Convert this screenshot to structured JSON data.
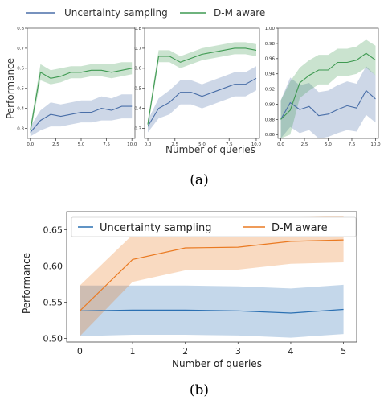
{
  "colors": {
    "uncertainty_a": "#4a6fa8",
    "dm_a": "#3f9a52",
    "uncertainty_b": "#2b70b2",
    "dm_b": "#ea7a22"
  },
  "figure_a": {
    "caption": "(a)",
    "legend": [
      "Uncertainty sampling",
      "D-M aware"
    ],
    "ylabel": "Performance",
    "xlabel": "Number of queries",
    "panels": [
      {
        "type": "line",
        "x": [
          0,
          1,
          2,
          3,
          4,
          5,
          6,
          7,
          8,
          9,
          10
        ],
        "xticks": [
          "0.0",
          "2.5",
          "5.0",
          "7.5",
          "10.0"
        ],
        "xtick_values": [
          0,
          2.5,
          5,
          7.5,
          10
        ],
        "yticks": [
          "0.3",
          "0.4",
          "0.5",
          "0.6",
          "0.7",
          "0.8"
        ],
        "ytick_values": [
          0.3,
          0.4,
          0.5,
          0.6,
          0.7,
          0.8
        ],
        "xlim": [
          -0.3,
          10.3
        ],
        "ylim": [
          0.25,
          0.8
        ],
        "series": [
          {
            "name": "Uncertainty sampling",
            "values": [
              0.28,
              0.34,
              0.37,
              0.36,
              0.37,
              0.38,
              0.38,
              0.4,
              0.39,
              0.41,
              0.41
            ],
            "lower": [
              0.26,
              0.29,
              0.31,
              0.31,
              0.32,
              0.33,
              0.33,
              0.34,
              0.34,
              0.35,
              0.35
            ],
            "upper": [
              0.31,
              0.39,
              0.43,
              0.42,
              0.43,
              0.44,
              0.44,
              0.46,
              0.45,
              0.47,
              0.47
            ]
          },
          {
            "name": "D-M aware",
            "values": [
              0.29,
              0.58,
              0.55,
              0.56,
              0.58,
              0.58,
              0.59,
              0.59,
              0.58,
              0.59,
              0.6
            ],
            "lower": [
              0.27,
              0.54,
              0.52,
              0.53,
              0.55,
              0.55,
              0.56,
              0.56,
              0.55,
              0.56,
              0.57
            ],
            "upper": [
              0.31,
              0.62,
              0.59,
              0.6,
              0.61,
              0.61,
              0.62,
              0.62,
              0.62,
              0.63,
              0.63
            ]
          }
        ]
      },
      {
        "type": "line",
        "x": [
          0,
          1,
          2,
          3,
          4,
          5,
          6,
          7,
          8,
          9,
          10
        ],
        "xticks": [
          "0.0",
          "2.5",
          "5.0",
          "7.5",
          "10.0"
        ],
        "xtick_values": [
          0,
          2.5,
          5,
          7.5,
          10
        ],
        "yticks": [
          "0.3",
          "0.4",
          "0.5",
          "0.6",
          "0.7",
          "0.8"
        ],
        "ytick_values": [
          0.3,
          0.4,
          0.5,
          0.6,
          0.7,
          0.8
        ],
        "xlim": [
          -0.3,
          10.3
        ],
        "ylim": [
          0.25,
          0.8
        ],
        "series": [
          {
            "name": "Uncertainty sampling",
            "values": [
              0.31,
              0.4,
              0.43,
              0.48,
              0.48,
              0.46,
              0.48,
              0.5,
              0.52,
              0.52,
              0.55
            ],
            "lower": [
              0.28,
              0.35,
              0.37,
              0.42,
              0.42,
              0.4,
              0.42,
              0.44,
              0.46,
              0.46,
              0.49
            ],
            "upper": [
              0.34,
              0.45,
              0.49,
              0.54,
              0.54,
              0.52,
              0.54,
              0.56,
              0.58,
              0.58,
              0.61
            ]
          },
          {
            "name": "D-M aware",
            "values": [
              0.32,
              0.66,
              0.66,
              0.63,
              0.65,
              0.67,
              0.68,
              0.69,
              0.7,
              0.7,
              0.69
            ],
            "lower": [
              0.3,
              0.63,
              0.63,
              0.6,
              0.62,
              0.64,
              0.65,
              0.66,
              0.67,
              0.67,
              0.66
            ],
            "upper": [
              0.34,
              0.69,
              0.69,
              0.66,
              0.68,
              0.7,
              0.71,
              0.72,
              0.73,
              0.73,
              0.72
            ]
          }
        ]
      },
      {
        "type": "line",
        "x": [
          0,
          1,
          2,
          3,
          4,
          5,
          6,
          7,
          8,
          9,
          10
        ],
        "xticks": [
          "0.0",
          "2.5",
          "5.0",
          "7.5",
          "10.0"
        ],
        "xtick_values": [
          0,
          2.5,
          5,
          7.5,
          10
        ],
        "yticks": [
          "0.86",
          "0.88",
          "0.90",
          "0.92",
          "0.94",
          "0.96",
          "0.98",
          "1.00"
        ],
        "ytick_values": [
          0.86,
          0.88,
          0.9,
          0.92,
          0.94,
          0.96,
          0.98,
          1.0
        ],
        "xlim": [
          -0.3,
          10.3
        ],
        "ylim": [
          0.855,
          1.0
        ],
        "series": [
          {
            "name": "Uncertainty sampling",
            "values": [
              0.88,
              0.902,
              0.893,
              0.897,
              0.885,
              0.887,
              0.893,
              0.898,
              0.895,
              0.918,
              0.907
            ],
            "lower": [
              0.855,
              0.87,
              0.862,
              0.866,
              0.855,
              0.857,
              0.862,
              0.866,
              0.864,
              0.886,
              0.876
            ],
            "upper": [
              0.905,
              0.935,
              0.925,
              0.928,
              0.916,
              0.918,
              0.925,
              0.93,
              0.927,
              0.95,
              0.938
            ]
          },
          {
            "name": "D-M aware",
            "values": [
              0.88,
              0.892,
              0.928,
              0.938,
              0.945,
              0.945,
              0.955,
              0.955,
              0.958,
              0.967,
              0.958
            ],
            "lower": [
              0.855,
              0.86,
              0.908,
              0.918,
              0.926,
              0.926,
              0.937,
              0.937,
              0.94,
              0.948,
              0.938
            ],
            "upper": [
              0.905,
              0.93,
              0.948,
              0.958,
              0.965,
              0.965,
              0.973,
              0.973,
              0.976,
              0.985,
              0.977
            ]
          }
        ]
      }
    ]
  },
  "figure_b": {
    "caption": "(b)",
    "legend": [
      "Uncertainty sampling",
      "D-M aware"
    ],
    "ylabel": "Performance",
    "xlabel": "Number of queries",
    "chart": {
      "type": "line",
      "x": [
        0,
        1,
        2,
        3,
        4,
        5
      ],
      "xticks": [
        "0",
        "1",
        "2",
        "3",
        "4",
        "5"
      ],
      "xtick_values": [
        0,
        1,
        2,
        3,
        4,
        5
      ],
      "yticks": [
        "0.50",
        "0.55",
        "0.60",
        "0.65"
      ],
      "ytick_values": [
        0.5,
        0.55,
        0.6,
        0.65
      ],
      "xlim": [
        -0.25,
        5.25
      ],
      "ylim": [
        0.495,
        0.675
      ],
      "series": [
        {
          "name": "Uncertainty sampling",
          "values": [
            0.538,
            0.539,
            0.539,
            0.538,
            0.535,
            0.54
          ],
          "lower": [
            0.503,
            0.505,
            0.505,
            0.504,
            0.501,
            0.506
          ],
          "upper": [
            0.573,
            0.573,
            0.573,
            0.572,
            0.569,
            0.574
          ]
        },
        {
          "name": "D-M aware",
          "values": [
            0.538,
            0.609,
            0.625,
            0.626,
            0.634,
            0.636
          ],
          "lower": [
            0.503,
            0.578,
            0.594,
            0.595,
            0.603,
            0.605
          ],
          "upper": [
            0.573,
            0.643,
            0.659,
            0.66,
            0.667,
            0.669
          ]
        }
      ]
    }
  }
}
